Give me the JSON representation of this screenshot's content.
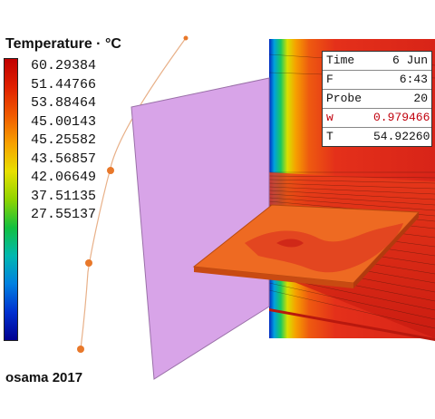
{
  "legend": {
    "title": "Temperature · °C",
    "labels": [
      "60.29384",
      "51.44766",
      "53.88464",
      "45.00143",
      "45.25582",
      "43.56857",
      "42.06649",
      "37.51135",
      "27.55137"
    ],
    "gradient": [
      "#c00000",
      "#e02000",
      "#f05a00",
      "#f7a000",
      "#e8e000",
      "#8fd400",
      "#12c040",
      "#00b8b0",
      "#0080e0",
      "#0030d0",
      "#000090"
    ]
  },
  "probe": {
    "rows": [
      {
        "key": "Time",
        "value": "6 Jun"
      },
      {
        "key": "F",
        "value": "6:43"
      },
      {
        "key": "Probe",
        "value": "20"
      },
      {
        "key": "w",
        "value": "0.979466"
      },
      {
        "key": "T",
        "value": "54.92260"
      }
    ]
  },
  "credit": "osama 2017",
  "colors": {
    "plane": "#d8a4e8",
    "wall_hot": "#e8301a",
    "slab": "#ee6420",
    "probe_dot": "#e8782a"
  }
}
